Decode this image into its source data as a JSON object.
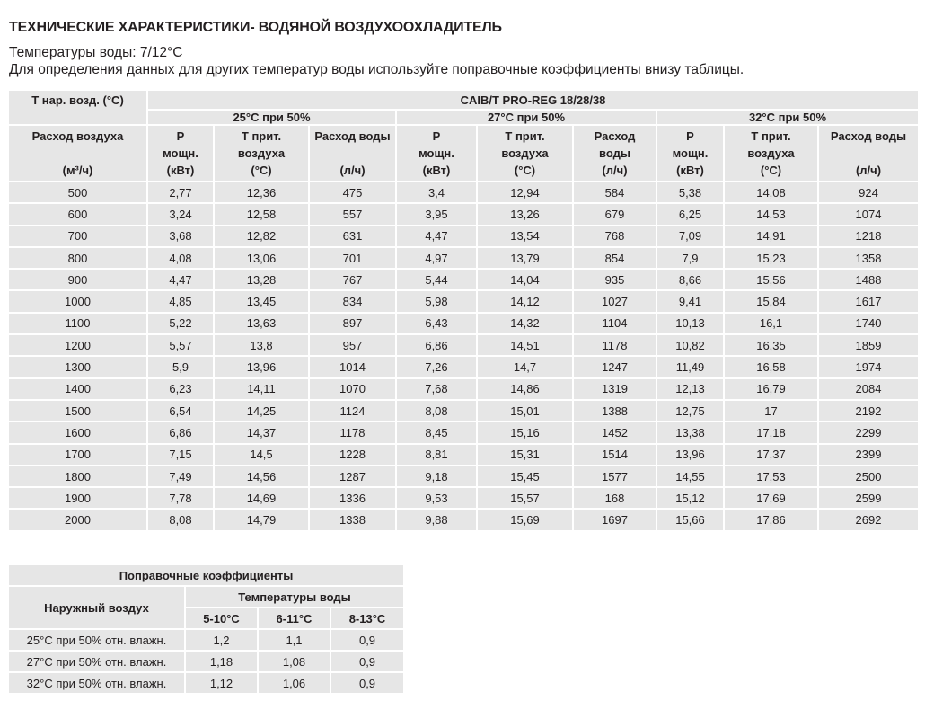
{
  "title": "ТЕХНИЧЕСКИЕ ХАРАКТЕРИСТИКИ- ВОДЯНОЙ ВОЗДУХООХЛАДИТЕЛЬ",
  "subtitle1": "Температуры воды: 7/12°C",
  "subtitle2": "Для определения данных для других температур воды используйте поправочные коэффициенты внизу таблицы.",
  "main_table": {
    "corner": "T нар. возд. (°C)",
    "model": "CAIB/T PRO-REG 18/28/38",
    "groups": [
      "25°C при 50%",
      "27°C при 50%",
      "32°C при 50%"
    ],
    "airflow_header": [
      "Расход воздуха",
      "",
      "(м³/ч)"
    ],
    "col_headers": [
      [
        "P",
        "мощн.",
        "(кВт)"
      ],
      [
        "T прит.",
        "воздуха",
        "(°C)"
      ],
      [
        "Расход воды",
        "",
        "(л/ч)"
      ],
      [
        "P",
        "мощн.",
        "(кВт)"
      ],
      [
        "T прит.",
        "воздуха",
        "(°C)"
      ],
      [
        "Расход",
        "воды",
        "(л/ч)"
      ],
      [
        "P",
        "мощн.",
        "(кВт)"
      ],
      [
        "T прит.",
        "воздуха",
        "(°C)"
      ],
      [
        "Расход воды",
        "",
        "(л/ч)"
      ]
    ],
    "rows": [
      [
        "500",
        "2,77",
        "12,36",
        "475",
        "3,4",
        "12,94",
        "584",
        "5,38",
        "14,08",
        "924"
      ],
      [
        "600",
        "3,24",
        "12,58",
        "557",
        "3,95",
        "13,26",
        "679",
        "6,25",
        "14,53",
        "1074"
      ],
      [
        "700",
        "3,68",
        "12,82",
        "631",
        "4,47",
        "13,54",
        "768",
        "7,09",
        "14,91",
        "1218"
      ],
      [
        "800",
        "4,08",
        "13,06",
        "701",
        "4,97",
        "13,79",
        "854",
        "7,9",
        "15,23",
        "1358"
      ],
      [
        "900",
        "4,47",
        "13,28",
        "767",
        "5,44",
        "14,04",
        "935",
        "8,66",
        "15,56",
        "1488"
      ],
      [
        "1000",
        "4,85",
        "13,45",
        "834",
        "5,98",
        "14,12",
        "1027",
        "9,41",
        "15,84",
        "1617"
      ],
      [
        "1100",
        "5,22",
        "13,63",
        "897",
        "6,43",
        "14,32",
        "1104",
        "10,13",
        "16,1",
        "1740"
      ],
      [
        "1200",
        "5,57",
        "13,8",
        "957",
        "6,86",
        "14,51",
        "1178",
        "10,82",
        "16,35",
        "1859"
      ],
      [
        "1300",
        "5,9",
        "13,96",
        "1014",
        "7,26",
        "14,7",
        "1247",
        "11,49",
        "16,58",
        "1974"
      ],
      [
        "1400",
        "6,23",
        "14,11",
        "1070",
        "7,68",
        "14,86",
        "1319",
        "12,13",
        "16,79",
        "2084"
      ],
      [
        "1500",
        "6,54",
        "14,25",
        "1124",
        "8,08",
        "15,01",
        "1388",
        "12,75",
        "17",
        "2192"
      ],
      [
        "1600",
        "6,86",
        "14,37",
        "1178",
        "8,45",
        "15,16",
        "1452",
        "13,38",
        "17,18",
        "2299"
      ],
      [
        "1700",
        "7,15",
        "14,5",
        "1228",
        "8,81",
        "15,31",
        "1514",
        "13,96",
        "17,37",
        "2399"
      ],
      [
        "1800",
        "7,49",
        "14,56",
        "1287",
        "9,18",
        "15,45",
        "1577",
        "14,55",
        "17,53",
        "2500"
      ],
      [
        "1900",
        "7,78",
        "14,69",
        "1336",
        "9,53",
        "15,57",
        "168",
        "15,12",
        "17,69",
        "2599"
      ],
      [
        "2000",
        "8,08",
        "14,79",
        "1338",
        "9,88",
        "15,69",
        "1697",
        "15,66",
        "17,86",
        "2692"
      ]
    ]
  },
  "coef_table": {
    "title": "Поправочные коэффициенты",
    "outdoor_label": "Наружный воздух",
    "water_temps_label": "Температуры воды",
    "water_temps": [
      "5-10°C",
      "6-11°C",
      "8-13°C"
    ],
    "rows": [
      [
        "25°C при 50% отн. влажн.",
        "1,2",
        "1,1",
        "0,9"
      ],
      [
        "27°C при 50% отн. влажн.",
        "1,18",
        "1,08",
        "0,9"
      ],
      [
        "32°C при 50% отн. влажн.",
        "1,12",
        "1,06",
        "0,9"
      ]
    ]
  }
}
